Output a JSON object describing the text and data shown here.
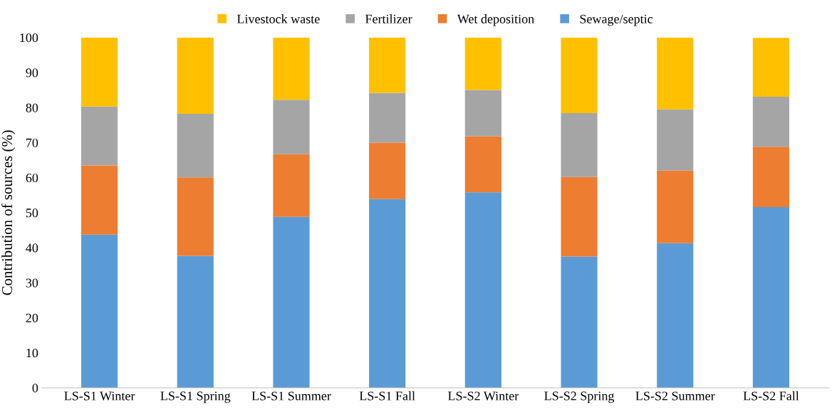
{
  "chart_data": {
    "type": "bar",
    "stacked": true,
    "ylabel": "Contribution of sources (%)",
    "categories": [
      "LS-S1 Winter",
      "LS-S1 Spring",
      "LS-S1 Summer",
      "LS-S1 Fall",
      "LS-S2 Winter",
      "LS-S2 Spring",
      "LS-S2 Summer",
      "LS-S2 Fall"
    ],
    "series": [
      {
        "name": "Sewage/septic",
        "color": "#5b9bd5",
        "values": [
          43.7,
          37.7,
          48.8,
          53.9,
          55.8,
          37.5,
          41.3,
          51.6
        ]
      },
      {
        "name": "Wet deposition",
        "color": "#ed7d31",
        "values": [
          19.8,
          22.4,
          17.9,
          16.1,
          16.0,
          22.7,
          20.7,
          17.2
        ]
      },
      {
        "name": "Fertilizer",
        "color": "#a5a5a5",
        "values": [
          16.8,
          18.1,
          15.5,
          14.2,
          13.2,
          18.2,
          17.5,
          14.3
        ]
      },
      {
        "name": "Livestock waste",
        "color": "#ffc000",
        "values": [
          19.7,
          21.8,
          17.8,
          15.8,
          15.0,
          21.6,
          20.5,
          16.8
        ]
      }
    ],
    "ylim": [
      0,
      100
    ],
    "yticks": [
      0,
      10,
      20,
      30,
      40,
      50,
      60,
      70,
      80,
      90,
      100
    ],
    "grid": false,
    "legend": "top"
  }
}
